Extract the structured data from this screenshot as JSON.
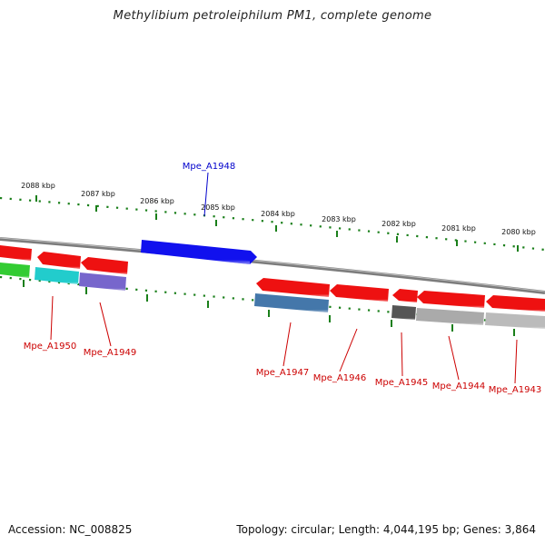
{
  "title": "Methylibium petroleiphilum PM1, complete genome",
  "footer": {
    "accession": "Accession: NC_008825",
    "summary": "Topology: circular; Length: 4,044,195 bp; Genes: 3,864"
  },
  "colors": {
    "backbone": "#8a8a8a",
    "tick": "#1a7f1a",
    "label_red": "#cc0000",
    "label_blue": "#0000cc",
    "tick_label": "#111111"
  },
  "scale": {
    "kbp_labels": [
      "2088 kbp",
      "2087 kbp",
      "2086 kbp",
      "2085 kbp",
      "2084 kbp",
      "2083 kbp",
      "2082 kbp",
      "2081 kbp",
      "2080 kbp"
    ]
  },
  "genes": [
    {
      "id": "g-left-red-1",
      "label": "",
      "color": "#ee1111",
      "strand": "reverse",
      "track": "outer"
    },
    {
      "id": "g-left-green",
      "label": "",
      "color": "#33cc33",
      "strand": "reverse",
      "track": "inner"
    },
    {
      "id": "Mpe_A1950",
      "label": "Mpe_A1950",
      "color": "#22cccc",
      "strand": "reverse",
      "track": "inner"
    },
    {
      "id": "g-red-2",
      "label": "",
      "color": "#ee1111",
      "strand": "reverse",
      "track": "outer"
    },
    {
      "id": "g-red-3",
      "label": "",
      "color": "#ee1111",
      "strand": "reverse",
      "track": "outer"
    },
    {
      "id": "Mpe_A1949",
      "label": "Mpe_A1949",
      "color": "#7766cc",
      "strand": "reverse",
      "track": "inner"
    },
    {
      "id": "Mpe_A1948",
      "label": "Mpe_A1948",
      "color": "#1111ee",
      "strand": "forward",
      "track": "outer"
    },
    {
      "id": "Mpe_A1947",
      "label": "Mpe_A1947",
      "color": "#4477aa",
      "strand": "reverse",
      "track": "inner"
    },
    {
      "id": "g-red-5",
      "label": "",
      "color": "#ee1111",
      "strand": "reverse",
      "track": "outer"
    },
    {
      "id": "Mpe_A1946",
      "label": "Mpe_A1946",
      "color": "#ee1111",
      "strand": "reverse",
      "track": "outer"
    },
    {
      "id": "Mpe_A1945",
      "label": "Mpe_A1945",
      "color": "#555555",
      "strand": "reverse",
      "track": "inner"
    },
    {
      "id": "g-red-7",
      "label": "",
      "color": "#ee1111",
      "strand": "reverse",
      "track": "outer"
    },
    {
      "id": "Mpe_A1944",
      "label": "Mpe_A1944",
      "color": "#ee1111",
      "strand": "reverse",
      "track": "outer"
    },
    {
      "id": "g-grey-1",
      "label": "",
      "color": "#aaaaaa",
      "strand": "reverse",
      "track": "inner"
    },
    {
      "id": "Mpe_A1943",
      "label": "Mpe_A1943",
      "color": "#ee1111",
      "strand": "reverse",
      "track": "outer"
    },
    {
      "id": "g-grey-2",
      "label": "",
      "color": "#bbbbbb",
      "strand": "reverse",
      "track": "inner"
    }
  ]
}
